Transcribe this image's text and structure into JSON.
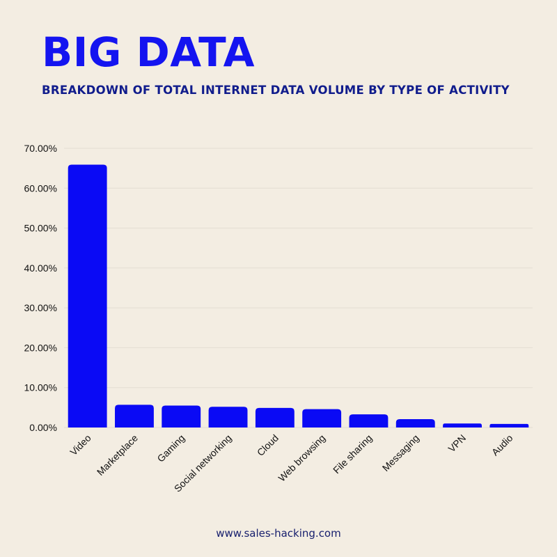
{
  "title": "BIG DATA",
  "subtitle": "BREAKDOWN OF TOTAL INTERNET DATA VOLUME BY TYPE OF ACTIVITY",
  "footer": "www.sales-hacking.com",
  "colors": {
    "background": "#f3ede2",
    "bar": "#0a0af5",
    "title": "#1414f0",
    "subtitle": "#101c8c",
    "grid": "#e3ddd2"
  },
  "chart_data": {
    "type": "bar",
    "categories": [
      "Video",
      "Marketplace",
      "Gaming",
      "Social networking",
      "Cloud",
      "Web browsing",
      "File sharing",
      "Messaging",
      "VPN",
      "Audio"
    ],
    "values": [
      65.9,
      5.7,
      5.5,
      5.2,
      4.9,
      4.6,
      3.3,
      2.1,
      1.0,
      0.9
    ],
    "ylim": [
      0,
      70
    ],
    "yticks": [
      0,
      10,
      20,
      30,
      40,
      50,
      60,
      70
    ],
    "ytick_labels": [
      "0.00%",
      "10.00%",
      "20.00%",
      "30.00%",
      "40.00%",
      "50.00%",
      "60.00%",
      "70.00%"
    ],
    "grid": true,
    "xlabel": "",
    "ylabel": ""
  }
}
